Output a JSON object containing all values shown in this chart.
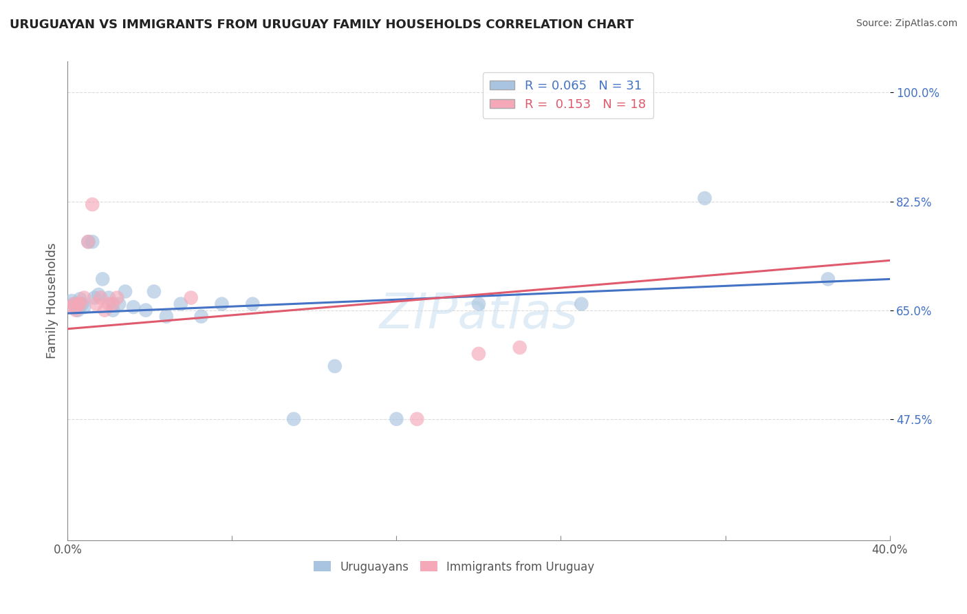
{
  "title": "URUGUAYAN VS IMMIGRANTS FROM URUGUAY FAMILY HOUSEHOLDS CORRELATION CHART",
  "source_text": "Source: ZipAtlas.com",
  "ylabel": "Family Households",
  "xlim": [
    0.0,
    0.4
  ],
  "ylim": [
    0.28,
    1.05
  ],
  "xticks": [
    0.0,
    0.08,
    0.16,
    0.24,
    0.32,
    0.4
  ],
  "xtick_labels": [
    "0.0%",
    "",
    "",
    "",
    "",
    "40.0%"
  ],
  "yticks": [
    0.475,
    0.65,
    0.825,
    1.0
  ],
  "ytick_labels": [
    "47.5%",
    "65.0%",
    "82.5%",
    "100.0%"
  ],
  "blue_R": 0.065,
  "blue_N": 31,
  "pink_R": 0.153,
  "pink_N": 18,
  "blue_color": "#a8c4e0",
  "pink_color": "#f4a8b8",
  "blue_line_color": "#4472c4",
  "pink_line_color": "#e05a6e",
  "watermark": "ZIPatlas",
  "blue_points_x": [
    0.002,
    0.003,
    0.004,
    0.005,
    0.006,
    0.007,
    0.008,
    0.01,
    0.012,
    0.013,
    0.015,
    0.017,
    0.02,
    0.022,
    0.025,
    0.028,
    0.032,
    0.038,
    0.042,
    0.048,
    0.055,
    0.065,
    0.075,
    0.09,
    0.11,
    0.13,
    0.16,
    0.2,
    0.25,
    0.31,
    0.37
  ],
  "blue_points_y": [
    0.665,
    0.66,
    0.655,
    0.65,
    0.668,
    0.66,
    0.655,
    0.76,
    0.76,
    0.67,
    0.675,
    0.7,
    0.67,
    0.65,
    0.66,
    0.68,
    0.655,
    0.65,
    0.68,
    0.64,
    0.66,
    0.64,
    0.66,
    0.66,
    0.475,
    0.56,
    0.475,
    0.66,
    0.66,
    0.83,
    0.7
  ],
  "pink_points_x": [
    0.002,
    0.003,
    0.004,
    0.005,
    0.006,
    0.008,
    0.01,
    0.012,
    0.014,
    0.016,
    0.018,
    0.02,
    0.022,
    0.024,
    0.06,
    0.17,
    0.2,
    0.22
  ],
  "pink_points_y": [
    0.655,
    0.66,
    0.65,
    0.66,
    0.66,
    0.67,
    0.76,
    0.82,
    0.66,
    0.67,
    0.65,
    0.66,
    0.66,
    0.67,
    0.67,
    0.475,
    0.58,
    0.59
  ],
  "background_color": "#ffffff",
  "grid_color": "#cccccc"
}
